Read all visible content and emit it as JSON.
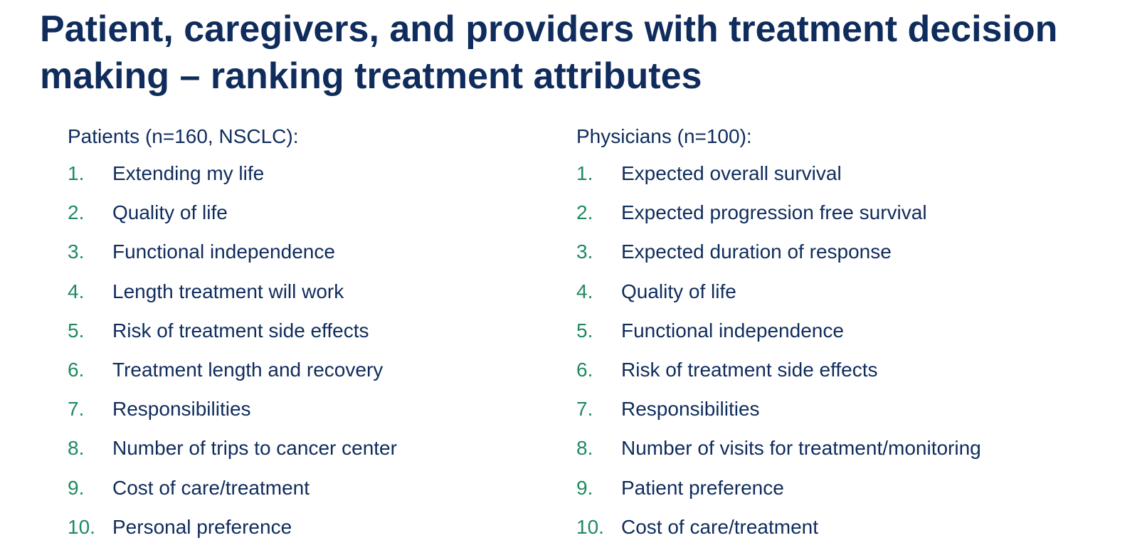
{
  "title": "Patient, caregivers, and providers with treatment decision making – ranking treatment attributes",
  "patients": {
    "heading": "Patients (n=160, NSCLC):",
    "items": [
      {
        "num": "1.",
        "label": "Extending my life"
      },
      {
        "num": "2.",
        "label": "Quality of life"
      },
      {
        "num": "3.",
        "label": "Functional independence"
      },
      {
        "num": "4.",
        "label": "Length treatment will work"
      },
      {
        "num": "5.",
        "label": "Risk of treatment side effects"
      },
      {
        "num": "6.",
        "label": "Treatment length and recovery"
      },
      {
        "num": "7.",
        "label": "Responsibilities"
      },
      {
        "num": "8.",
        "label": "Number of trips to cancer center"
      },
      {
        "num": "9.",
        "label": "Cost of care/treatment"
      },
      {
        "num": "10.",
        "label": "Personal preference"
      }
    ]
  },
  "physicians": {
    "heading": "Physicians (n=100):",
    "items": [
      {
        "num": "1.",
        "label": "Expected overall survival"
      },
      {
        "num": "2.",
        "label": "Expected progression free survival"
      },
      {
        "num": "3.",
        "label": "Expected duration of response"
      },
      {
        "num": "4.",
        "label": "Quality of life"
      },
      {
        "num": "5.",
        "label": "Functional independence"
      },
      {
        "num": "6.",
        "label": "Risk of treatment side effects"
      },
      {
        "num": "7.",
        "label": "Responsibilities"
      },
      {
        "num": "8.",
        "label": "Number of visits for treatment/monitoring"
      },
      {
        "num": "9.",
        "label": "Patient preference"
      },
      {
        "num": "10.",
        "label": "Cost of care/treatment"
      }
    ]
  },
  "colors": {
    "title": "#0f2c5c",
    "text": "#0f2c5c",
    "number": "#1f8a5f",
    "background": "#ffffff"
  }
}
